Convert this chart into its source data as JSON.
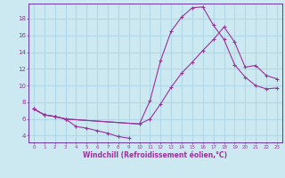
{
  "xlabel": "Windchill (Refroidissement éolien,°C)",
  "bg_color": "#cce8f0",
  "grid_color": "#b0d8e8",
  "line_color": "#993399",
  "spine_color": "#6633aa",
  "xlim": [
    -0.5,
    23.5
  ],
  "ylim": [
    3.2,
    19.8
  ],
  "xticks": [
    0,
    1,
    2,
    3,
    4,
    5,
    6,
    7,
    8,
    9,
    10,
    11,
    12,
    13,
    14,
    15,
    16,
    17,
    18,
    19,
    20,
    21,
    22,
    23
  ],
  "yticks": [
    4,
    6,
    8,
    10,
    12,
    14,
    16,
    18
  ],
  "line1_x": [
    0,
    1,
    2,
    3,
    4,
    5,
    6,
    7,
    8,
    9
  ],
  "line1_y": [
    7.2,
    6.5,
    6.3,
    6.0,
    5.1,
    4.9,
    4.6,
    4.3,
    3.9,
    3.7
  ],
  "line2_x": [
    0,
    1,
    2,
    3,
    10,
    11,
    12,
    13,
    14,
    15,
    16,
    17,
    18,
    19,
    20,
    21,
    22,
    23
  ],
  "line2_y": [
    7.2,
    6.5,
    6.3,
    6.0,
    5.4,
    8.2,
    13.0,
    16.5,
    18.2,
    19.3,
    19.4,
    17.2,
    15.5,
    12.5,
    11.0,
    10.0,
    9.6,
    9.7
  ],
  "line3_x": [
    0,
    1,
    2,
    3,
    10,
    11,
    12,
    13,
    14,
    15,
    16,
    17,
    18,
    19,
    20,
    21,
    22,
    23
  ],
  "line3_y": [
    7.2,
    6.5,
    6.3,
    6.0,
    5.4,
    6.0,
    7.8,
    9.8,
    11.5,
    12.8,
    14.2,
    15.5,
    17.0,
    15.2,
    12.2,
    12.4,
    11.2,
    10.8
  ]
}
